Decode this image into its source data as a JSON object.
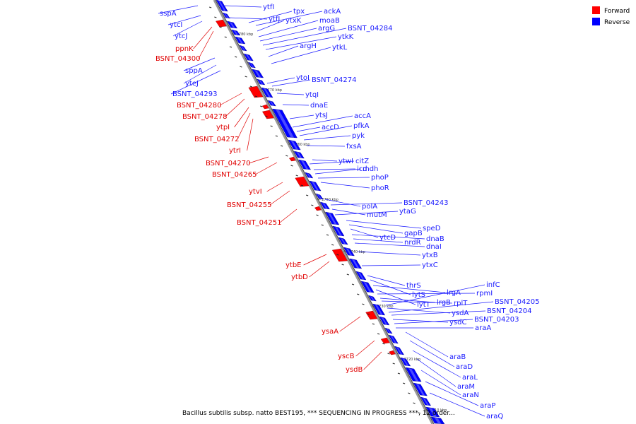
{
  "legend": {
    "forward_label": "Forward",
    "reverse_label": "Reverse",
    "forward_color": "#ff0000",
    "reverse_color": "#0000ff"
  },
  "caption": "Bacillus subtilis subsp. natto BEST195, *** SEQUENCING IN PROGRESS ***, 12 order...",
  "ticks": [
    "2780 kbp",
    "2770 kbp",
    "2760 kbp",
    "2750 kbp",
    "2740 kbp",
    "2730 kbp",
    "2720 kbp",
    "2710 kbp"
  ],
  "reverse_genes": [
    "ytfI",
    "ytfJ",
    "tpx",
    "ackA",
    "ytxK",
    "moaB",
    "argG",
    "BSNT_04284",
    "ytkK",
    "argH",
    "ytkL",
    "ytoI",
    "BSNT_04274",
    "ytqI",
    "dnaE",
    "ytsJ",
    "accA",
    "accD",
    "pfkA",
    "pyk",
    "fxsA",
    "citZ",
    "ytwI",
    "icd",
    "mdh",
    "phoP",
    "phoR",
    "polA",
    "BSNT_04243",
    "mutM",
    "ytaG",
    "speD",
    "gapB",
    "ytcD",
    "dnaB",
    "nrdR",
    "dnaI",
    "ytxB",
    "ytxC",
    "thrS",
    "lytS",
    "lrgA",
    "lytT",
    "rpmI",
    "lrgB",
    "rplT",
    "infC",
    "ysdA",
    "BSNT_04205",
    "BSNT_04204",
    "ysdC",
    "BSNT_04203",
    "araA",
    "araB",
    "araD",
    "araL",
    "araM",
    "araN",
    "araP",
    "araQ",
    "sspA",
    "ytcI",
    "ytcJ",
    "sppA",
    "yteJ",
    "BSNT_04293"
  ],
  "forward_genes": [
    "ppnK",
    "BSNT_04300",
    "BSNT_04280",
    "BSNT_04278",
    "ytpI",
    "BSNT_04272",
    "ytrI",
    "BSNT_04270",
    "BSNT_04265",
    "ytvI",
    "BSNT_04255",
    "BSNT_04251",
    "ytbE",
    "ytbD",
    "ysaA",
    "yscB",
    "ysdB"
  ]
}
